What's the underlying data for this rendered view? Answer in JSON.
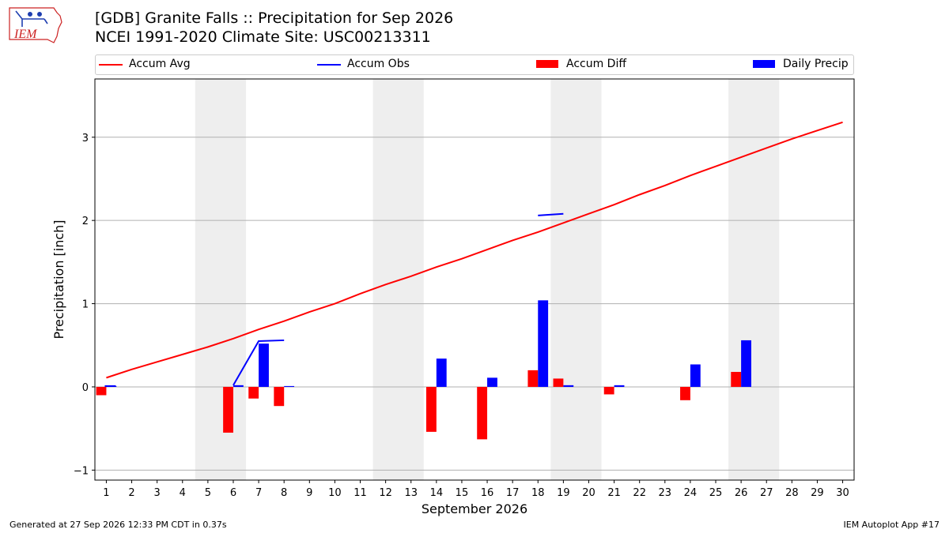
{
  "logo": {
    "text": "IEM",
    "color": "#cc2222"
  },
  "header": {
    "title_line1": "[GDB] Granite Falls :: Precipitation for Sep 2026",
    "title_line2": "NCEI 1991-2020 Climate Site: USC00213311"
  },
  "legend": {
    "accum_avg": "Accum Avg",
    "accum_obs": "Accum Obs",
    "accum_diff": "Accum Diff",
    "daily_precip": "Daily Precip",
    "placement": "top"
  },
  "footer": {
    "generated": "Generated at 27 Sep 2026 12:33 PM CDT in 0.37s",
    "app": "IEM Autoplot App #17"
  },
  "chart_data": {
    "type": "bar",
    "title": "[GDB] Granite Falls :: Precipitation for Sep 2026",
    "subtitle": "NCEI 1991-2020 Climate Site: USC00213311",
    "xlabel": "September 2026",
    "ylabel": "Precipitation [inch]",
    "ylim": [
      -1.12,
      3.7
    ],
    "xlim": [
      0.55,
      30.45
    ],
    "yticks": [
      -1,
      0,
      1,
      2,
      3
    ],
    "ytick_labels": [
      "−1",
      "0",
      "1",
      "2",
      "3"
    ],
    "x": [
      1,
      2,
      3,
      4,
      5,
      6,
      7,
      8,
      9,
      10,
      11,
      12,
      13,
      14,
      15,
      16,
      17,
      18,
      19,
      20,
      21,
      22,
      23,
      24,
      25,
      26,
      27,
      28,
      29,
      30
    ],
    "grid": "horizontal",
    "weekend_shading": [
      [
        4.5,
        6.5
      ],
      [
        11.5,
        13.5
      ],
      [
        18.5,
        20.5
      ],
      [
        25.5,
        27.5
      ]
    ],
    "colors": {
      "avg": "#ff0000",
      "obs": "#0000ff",
      "diff": "#ff0000",
      "daily": "#0000ff",
      "shade": "#eeeeee",
      "grid": "#b0b0b0"
    },
    "series": [
      {
        "name": "Accum Avg",
        "kind": "line",
        "values": [
          0.11,
          0.21,
          0.3,
          0.39,
          0.48,
          0.58,
          0.69,
          0.79,
          0.9,
          1.0,
          1.12,
          1.23,
          1.33,
          1.44,
          1.54,
          1.65,
          1.76,
          1.86,
          1.97,
          2.08,
          2.19,
          2.31,
          2.42,
          2.54,
          2.65,
          2.76,
          2.87,
          2.98,
          3.08,
          3.18
        ]
      },
      {
        "name": "Accum Obs",
        "kind": "line",
        "segments": [
          {
            "x": [
              1
            ],
            "values": [
              0.01
            ]
          },
          {
            "x": [
              6,
              7,
              8
            ],
            "values": [
              0.02,
              0.55,
              0.56
            ]
          },
          {
            "x": [
              18,
              19
            ],
            "values": [
              2.06,
              2.08
            ]
          }
        ]
      },
      {
        "name": "Accum Diff",
        "kind": "bar",
        "values": [
          -0.1,
          null,
          null,
          null,
          null,
          -0.55,
          -0.14,
          -0.23,
          null,
          null,
          null,
          null,
          null,
          -0.54,
          null,
          -0.63,
          null,
          0.2,
          0.1,
          null,
          -0.09,
          null,
          null,
          -0.16,
          null,
          0.18,
          null,
          null,
          null,
          null
        ]
      },
      {
        "name": "Daily Precip",
        "kind": "bar",
        "values": [
          0.01,
          null,
          null,
          null,
          null,
          0.02,
          0.52,
          0.01,
          null,
          null,
          null,
          null,
          null,
          0.34,
          null,
          0.11,
          null,
          1.04,
          0.02,
          null,
          0.02,
          null,
          null,
          0.27,
          null,
          0.56,
          null,
          null,
          null,
          null
        ]
      }
    ]
  }
}
